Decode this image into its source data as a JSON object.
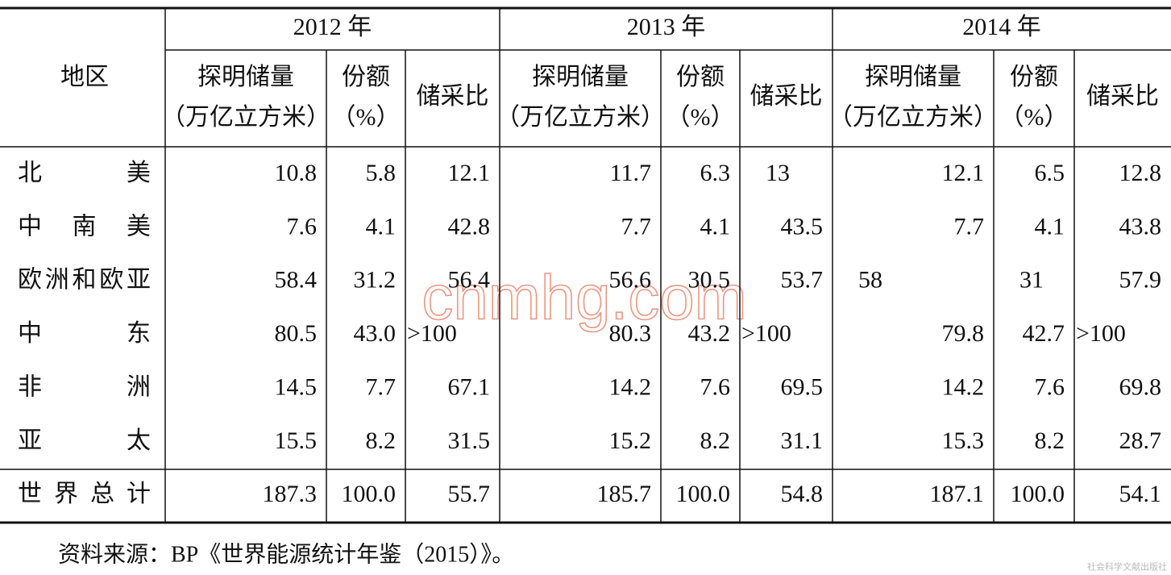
{
  "table": {
    "header": {
      "region": "地区",
      "years": [
        {
          "label": "2012 年",
          "columns": [
            [
              "探明储量",
              "（万亿立方米）"
            ],
            [
              "份额",
              "（%）"
            ],
            [
              "储采比"
            ]
          ]
        },
        {
          "label": "2013 年",
          "columns": [
            [
              "探明储量",
              "（万亿立方米）"
            ],
            [
              "份额",
              "（%）"
            ],
            [
              "储采比"
            ]
          ]
        },
        {
          "label": "2014 年",
          "columns": [
            [
              "探明储量",
              "（万亿立方米）"
            ],
            [
              "份额",
              "（%）"
            ],
            [
              "储采比"
            ]
          ]
        }
      ]
    },
    "rows": [
      {
        "region": "北美",
        "cells": [
          "10.8",
          "5.8",
          "12.1",
          "11.7",
          "6.3",
          "13",
          "12.1",
          "6.5",
          "12.8"
        ]
      },
      {
        "region": "中南美",
        "cells": [
          "7.6",
          "4.1",
          "42.8",
          "7.7",
          "4.1",
          "43.5",
          "7.7",
          "4.1",
          "43.8"
        ]
      },
      {
        "region": "欧洲和欧亚",
        "cells": [
          "58.4",
          "31.2",
          "56.4",
          "56.6",
          "30.5",
          "53.7",
          "58",
          "31",
          "57.9"
        ]
      },
      {
        "region": "中东",
        "cells": [
          "80.5",
          "43.0",
          ">100",
          "80.3",
          "43.2",
          ">100",
          "79.8",
          "42.7",
          ">100"
        ]
      },
      {
        "region": "非洲",
        "cells": [
          "14.5",
          "7.7",
          "67.1",
          "14.2",
          "7.6",
          "69.5",
          "14.2",
          "7.6",
          "69.8"
        ]
      },
      {
        "region": "亚太",
        "cells": [
          "15.5",
          "8.2",
          "31.5",
          "15.2",
          "8.2",
          "31.1",
          "15.3",
          "8.2",
          "28.7"
        ]
      }
    ],
    "total": {
      "region": "世界总计",
      "cells": [
        "187.3",
        "100.0",
        "55.7",
        "185.7",
        "100.0",
        "54.8",
        "187.1",
        "100.0",
        "54.1"
      ]
    },
    "source": "资料来源：BP《世界能源统计年鉴（2015）》。",
    "watermark": "cnmhg.com",
    "corner_mark": "社会科学文献出版社"
  }
}
